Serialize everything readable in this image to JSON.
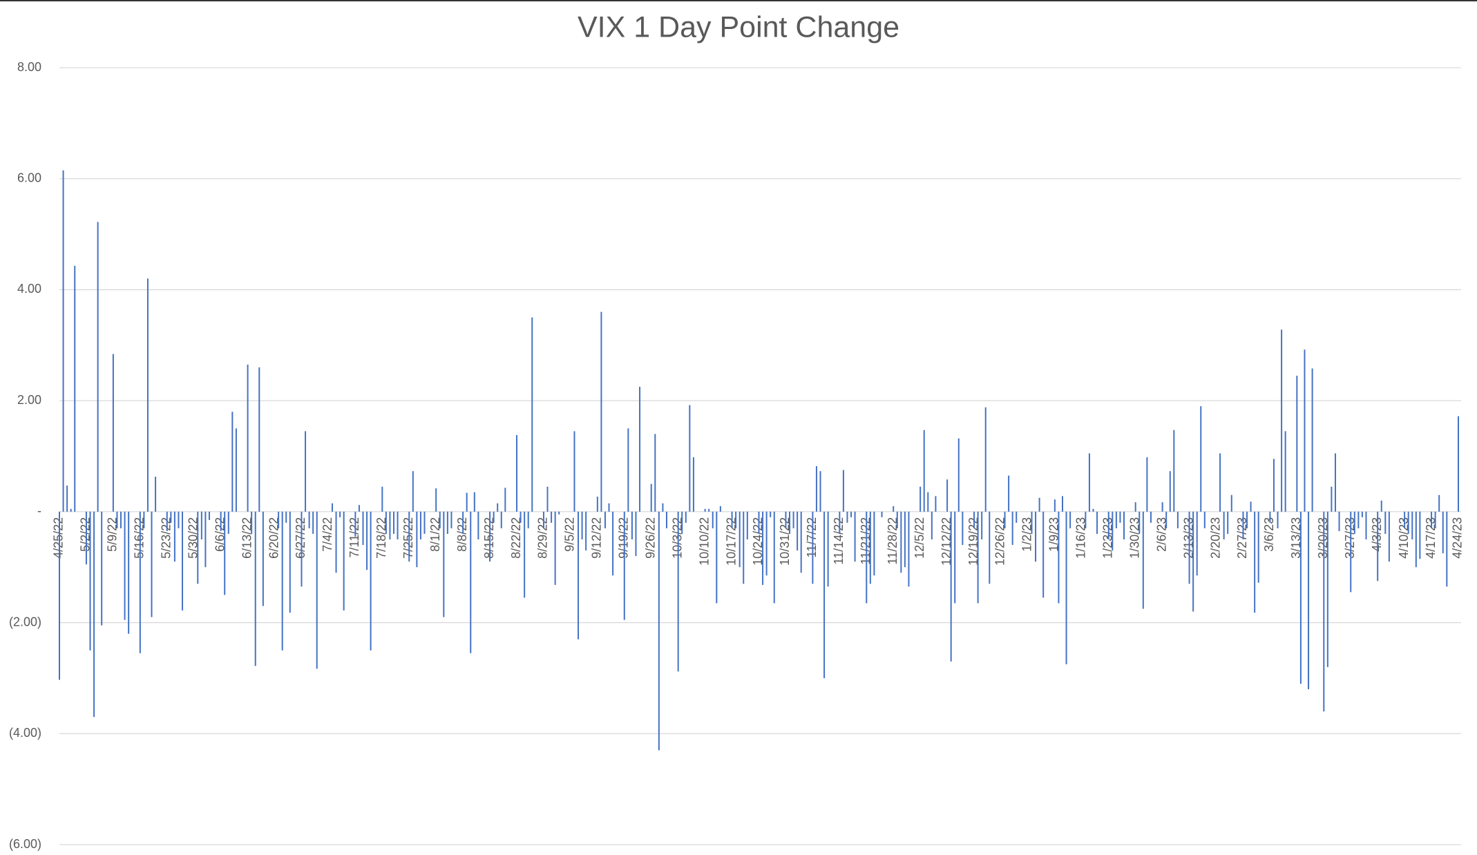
{
  "chart_data": {
    "type": "bar",
    "title": "VIX 1 Day Point Change",
    "color": "#4472c4",
    "grid": true,
    "ylim": [
      -6,
      8
    ],
    "yticks": [
      {
        "value": -6,
        "label": "(6.00)"
      },
      {
        "value": -4,
        "label": "(4.00)"
      },
      {
        "value": -2,
        "label": "(2.00)"
      },
      {
        "value": 0,
        "label": "-"
      },
      {
        "value": 2,
        "label": "2.00"
      },
      {
        "value": 4,
        "label": "4.00"
      },
      {
        "value": 6,
        "label": "6.00"
      },
      {
        "value": 8,
        "label": "8.00"
      }
    ],
    "categories": [
      "4/25/22",
      null,
      null,
      null,
      null,
      null,
      null,
      "5/2/22",
      null,
      null,
      null,
      null,
      null,
      null,
      "5/9/22",
      null,
      null,
      null,
      null,
      null,
      null,
      "5/16/22",
      null,
      null,
      null,
      null,
      null,
      null,
      "5/23/22",
      null,
      null,
      null,
      null,
      null,
      null,
      "5/30/22",
      null,
      null,
      null,
      null,
      null,
      null,
      "6/6/22",
      null,
      null,
      null,
      null,
      null,
      null,
      "6/13/22",
      null,
      null,
      null,
      null,
      null,
      null,
      "6/20/22",
      null,
      null,
      null,
      null,
      null,
      null,
      "6/27/22",
      null,
      null,
      null,
      null,
      null,
      null,
      "7/4/22",
      null,
      null,
      null,
      null,
      null,
      null,
      "7/11/22",
      null,
      null,
      null,
      null,
      null,
      null,
      "7/18/22",
      null,
      null,
      null,
      null,
      null,
      null,
      "7/25/22",
      null,
      null,
      null,
      null,
      null,
      null,
      "8/1/22",
      null,
      null,
      null,
      null,
      null,
      null,
      "8/8/22",
      null,
      null,
      null,
      null,
      null,
      null,
      "8/15/22",
      null,
      null,
      null,
      null,
      null,
      null,
      "8/22/22",
      null,
      null,
      null,
      null,
      null,
      null,
      "8/29/22",
      null,
      null,
      null,
      null,
      null,
      null,
      "9/5/22",
      null,
      null,
      null,
      null,
      null,
      null,
      "9/12/22",
      null,
      null,
      null,
      null,
      null,
      null,
      "9/19/22",
      null,
      null,
      null,
      null,
      null,
      null,
      "9/26/22",
      null,
      null,
      null,
      null,
      null,
      null,
      "10/3/22",
      null,
      null,
      null,
      null,
      null,
      null,
      "10/10/22",
      null,
      null,
      null,
      null,
      null,
      null,
      "10/17/22",
      null,
      null,
      null,
      null,
      null,
      null,
      "10/24/22",
      null,
      null,
      null,
      null,
      null,
      null,
      "10/31/22",
      null,
      null,
      null,
      null,
      null,
      null,
      "11/7/22",
      null,
      null,
      null,
      null,
      null,
      null,
      "11/14/22",
      null,
      null,
      null,
      null,
      null,
      null,
      "11/21/22",
      null,
      null,
      null,
      null,
      null,
      null,
      "11/28/22",
      null,
      null,
      null,
      null,
      null,
      null,
      "12/5/22",
      null,
      null,
      null,
      null,
      null,
      null,
      "12/12/22",
      null,
      null,
      null,
      null,
      null,
      null,
      "12/19/22",
      null,
      null,
      null,
      null,
      null,
      null,
      "12/26/22",
      null,
      null,
      null,
      null,
      null,
      null,
      "1/2/23",
      null,
      null,
      null,
      null,
      null,
      null,
      "1/9/23",
      null,
      null,
      null,
      null,
      null,
      null,
      "1/16/23",
      null,
      null,
      null,
      null,
      null,
      null,
      "1/23/23",
      null,
      null,
      null,
      null,
      null,
      null,
      "1/30/23",
      null,
      null,
      null,
      null,
      null,
      null,
      "2/6/23",
      null,
      null,
      null,
      null,
      null,
      null,
      "2/13/23",
      null,
      null,
      null,
      null,
      null,
      null,
      "2/20/23",
      null,
      null,
      null,
      null,
      null,
      null,
      "2/27/23",
      null,
      null,
      null,
      null,
      null,
      null,
      "3/6/23",
      null,
      null,
      null,
      null,
      null,
      null,
      "3/13/23",
      null,
      null,
      null,
      null,
      null,
      null,
      "3/20/23",
      null,
      null,
      null,
      null,
      null,
      null,
      "3/27/23",
      null,
      null,
      null,
      null,
      null,
      null,
      "4/3/23",
      null,
      null,
      null,
      null,
      null,
      null,
      "4/10/23",
      null,
      null,
      null,
      null,
      null,
      null,
      "4/17/23",
      null,
      null,
      null,
      null,
      null,
      null,
      "4/24/23"
    ],
    "values": [
      -3.03,
      6.15,
      0.47,
      0.05,
      4.43,
      null,
      null,
      -0.95,
      -2.5,
      -3.7,
      5.22,
      -2.05,
      null,
      null,
      2.84,
      -0.3,
      -0.3,
      -1.95,
      -2.2,
      null,
      null,
      -2.55,
      -0.3,
      4.2,
      -1.9,
      0.63,
      null,
      null,
      -0.35,
      -0.2,
      -0.9,
      -0.3,
      -1.78,
      null,
      null,
      null,
      -1.3,
      -0.5,
      -1.0,
      -0.15,
      null,
      null,
      -0.35,
      -1.5,
      -0.4,
      1.8,
      1.5,
      null,
      null,
      2.65,
      -0.4,
      -2.78,
      2.6,
      -1.7,
      null,
      null,
      null,
      -0.3,
      -2.5,
      -0.2,
      -1.82,
      null,
      null,
      -1.35,
      1.45,
      -0.3,
      -0.4,
      -2.83,
      null,
      null,
      null,
      0.15,
      -1.1,
      -0.1,
      -1.78,
      null,
      null,
      -0.45,
      0.12,
      -0.6,
      -1.05,
      -2.5,
      null,
      null,
      0.45,
      -0.4,
      -0.5,
      -0.4,
      -0.5,
      null,
      null,
      -0.9,
      0.73,
      -1.0,
      -0.5,
      -0.4,
      null,
      null,
      0.42,
      -0.3,
      -1.9,
      -0.4,
      -0.3,
      null,
      null,
      -0.4,
      0.34,
      -2.55,
      0.35,
      -0.5,
      null,
      null,
      -0.9,
      -0.2,
      0.15,
      -0.3,
      0.43,
      null,
      null,
      1.38,
      -0.2,
      -1.55,
      -0.3,
      3.5,
      null,
      null,
      -0.3,
      0.45,
      -0.2,
      -1.32,
      -0.05,
      null,
      null,
      null,
      1.45,
      -2.3,
      -0.5,
      -0.7,
      null,
      null,
      0.27,
      3.6,
      -0.3,
      0.15,
      -1.15,
      null,
      null,
      -1.95,
      1.5,
      -0.5,
      -0.8,
      2.25,
      null,
      null,
      0.5,
      1.4,
      -4.3,
      0.15,
      -0.3,
      null,
      null,
      -2.88,
      -0.4,
      -0.2,
      1.92,
      0.98,
      null,
      null,
      0.05,
      0.05,
      -0.3,
      -1.65,
      0.1,
      null,
      null,
      -0.3,
      -0.3,
      -1.0,
      -1.3,
      -0.5,
      null,
      null,
      -0.4,
      -1.32,
      -1.15,
      -0.1,
      -1.65,
      null,
      null,
      -0.3,
      -0.4,
      -0.3,
      -0.7,
      -1.1,
      null,
      null,
      -1.3,
      0.82,
      0.73,
      -3.0,
      -1.35,
      null,
      null,
      -0.4,
      0.75,
      -0.2,
      -0.1,
      -0.9,
      null,
      null,
      -1.65,
      -1.3,
      -1.15,
      null,
      -0.1,
      null,
      null,
      0.1,
      -0.3,
      -1.1,
      -1.0,
      -1.35,
      null,
      null,
      0.45,
      1.47,
      0.35,
      -0.5,
      0.28,
      null,
      null,
      0.58,
      -2.7,
      -1.65,
      1.32,
      -0.6,
      null,
      null,
      -0.3,
      -1.65,
      -0.5,
      1.88,
      -1.3,
      null,
      null,
      null,
      -0.3,
      0.65,
      -0.6,
      -0.2,
      null,
      null,
      null,
      -0.4,
      -0.9,
      0.25,
      -1.55,
      null,
      null,
      0.22,
      -1.65,
      0.28,
      -2.75,
      -0.3,
      null,
      null,
      null,
      -0.3,
      1.05,
      0.05,
      -0.4,
      null,
      null,
      -0.5,
      -0.7,
      -0.3,
      -0.2,
      -0.5,
      null,
      null,
      0.17,
      -0.4,
      -1.75,
      0.98,
      -0.2,
      null,
      null,
      0.17,
      -0.3,
      0.73,
      1.47,
      -0.3,
      null,
      null,
      -1.3,
      -1.8,
      -1.15,
      1.9,
      -0.3,
      null,
      null,
      null,
      1.05,
      -0.5,
      -0.4,
      0.3,
      null,
      null,
      -0.5,
      -0.3,
      0.18,
      -1.82,
      -1.28,
      null,
      null,
      -0.2,
      0.95,
      -0.3,
      3.28,
      1.45,
      null,
      null,
      2.45,
      -3.1,
      2.92,
      -3.2,
      2.58,
      null,
      null,
      -3.6,
      -2.8,
      0.45,
      1.05,
      -0.35,
      null,
      null,
      -1.45,
      -0.4,
      -0.3,
      -0.1,
      -0.5,
      null,
      null,
      -1.25,
      0.2,
      -0.4,
      -0.9,
      null,
      null,
      null,
      -0.3,
      -0.4,
      -0.5,
      -1.0,
      -0.85,
      null,
      null,
      -0.3,
      -0.3,
      0.3,
      -0.75,
      -1.35,
      null,
      null,
      1.72
    ]
  }
}
